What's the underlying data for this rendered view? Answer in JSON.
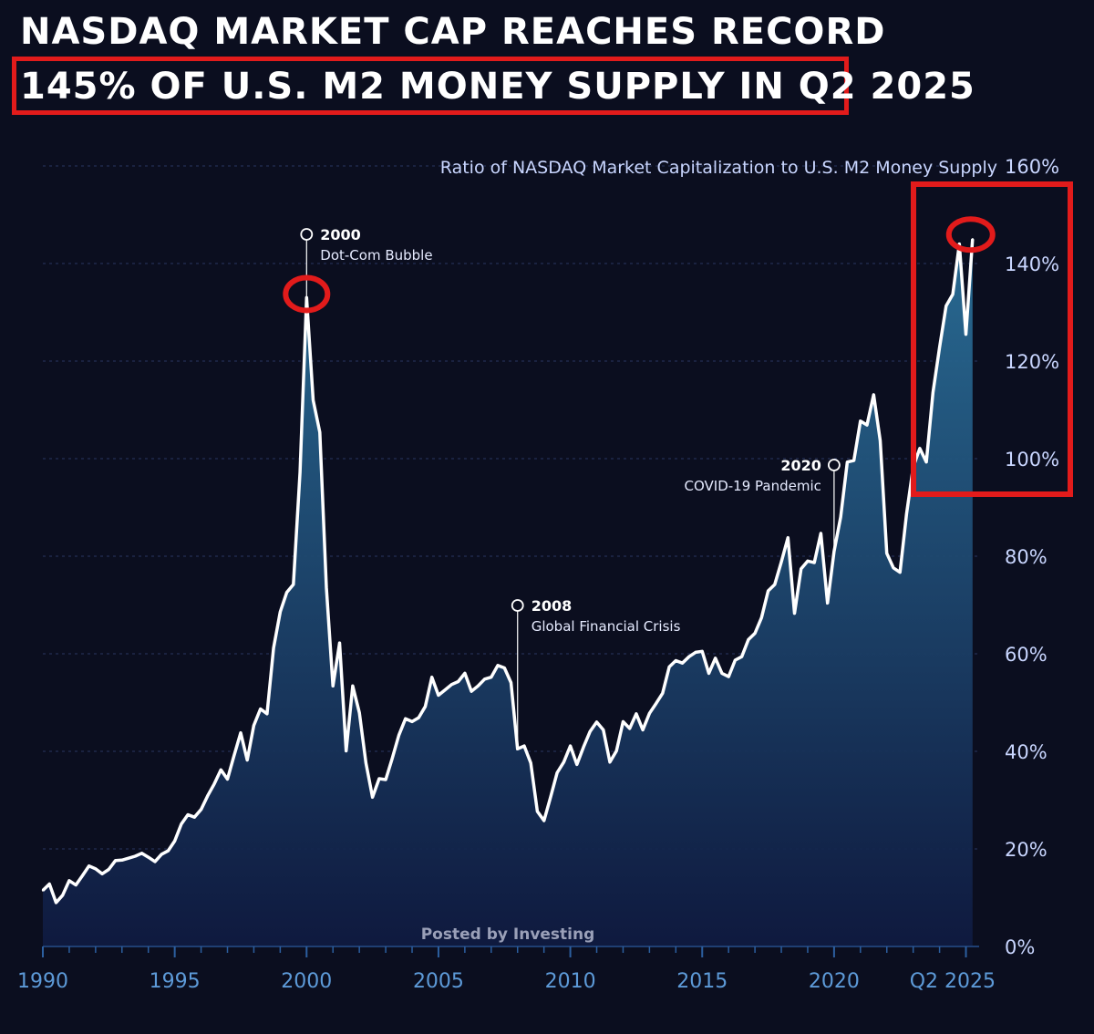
{
  "headline": {
    "line1": "NASDAQ MARKET CAP REACHES RECORD",
    "line2": "145% OF U.S. M2 MONEY SUPPLY IN Q2 2025"
  },
  "credit": "Posted by Investing",
  "colors": {
    "background": "#0b0e1f",
    "line": "#ffffff",
    "area_top": "#2a6f98",
    "area_bottom": "#0f1a40",
    "highlight": "#e21b1b",
    "x_tick": "#5d9ad8",
    "y_tick": "#c9d6ff"
  },
  "chart_data": {
    "type": "area",
    "subtitle": "Ratio of NASDAQ Market Capitalization to U.S. M2 Money Supply",
    "xlabel": "",
    "ylabel": "",
    "x_range": [
      1990,
      2025.5
    ],
    "ylim": [
      0,
      160
    ],
    "y_ticks": [
      0,
      20,
      40,
      60,
      80,
      100,
      120,
      140,
      160
    ],
    "y_tick_labels": [
      "0%",
      "20%",
      "40%",
      "60%",
      "80%",
      "100%",
      "120%",
      "140%",
      "160%"
    ],
    "x_ticks": [
      1990,
      1995,
      2000,
      2005,
      2010,
      2015,
      2020,
      2025.25
    ],
    "x_tick_labels": [
      "1990",
      "1995",
      "2000",
      "2005",
      "2010",
      "2015",
      "2020",
      "Q2 2025"
    ],
    "grid": "horizontal dashed",
    "series": [
      {
        "points": [
          [
            1990.0,
            11.5
          ],
          [
            1990.25,
            12.8
          ],
          [
            1990.5,
            9.0
          ],
          [
            1990.75,
            10.5
          ],
          [
            1991.0,
            13.5
          ],
          [
            1991.25,
            12.6
          ],
          [
            1991.5,
            14.5
          ],
          [
            1991.75,
            16.5
          ],
          [
            1992.0,
            15.9
          ],
          [
            1992.25,
            14.9
          ],
          [
            1992.5,
            15.8
          ],
          [
            1992.75,
            17.6
          ],
          [
            1993.0,
            17.7
          ],
          [
            1993.25,
            18.1
          ],
          [
            1993.5,
            18.5
          ],
          [
            1993.75,
            19.1
          ],
          [
            1994.0,
            18.3
          ],
          [
            1994.25,
            17.4
          ],
          [
            1994.5,
            18.9
          ],
          [
            1994.75,
            19.6
          ],
          [
            1995.0,
            21.6
          ],
          [
            1995.25,
            25.1
          ],
          [
            1995.5,
            27.0
          ],
          [
            1995.75,
            26.5
          ],
          [
            1996.0,
            28.1
          ],
          [
            1996.25,
            30.9
          ],
          [
            1996.5,
            33.3
          ],
          [
            1996.75,
            36.2
          ],
          [
            1997.0,
            34.3
          ],
          [
            1997.25,
            39.1
          ],
          [
            1997.5,
            43.8
          ],
          [
            1997.75,
            38.2
          ],
          [
            1998.0,
            45.3
          ],
          [
            1998.25,
            48.7
          ],
          [
            1998.5,
            47.7
          ],
          [
            1998.75,
            61.2
          ],
          [
            1999.0,
            68.6
          ],
          [
            1999.25,
            72.6
          ],
          [
            1999.5,
            74.2
          ],
          [
            1999.75,
            97.2
          ],
          [
            2000.0,
            133.0
          ],
          [
            2000.25,
            112.0
          ],
          [
            2000.5,
            105.4
          ],
          [
            2000.75,
            73.6
          ],
          [
            2001.0,
            53.4
          ],
          [
            2001.25,
            62.2
          ],
          [
            2001.5,
            40.1
          ],
          [
            2001.75,
            53.4
          ],
          [
            2002.0,
            47.9
          ],
          [
            2002.25,
            37.6
          ],
          [
            2002.5,
            30.6
          ],
          [
            2002.75,
            34.4
          ],
          [
            2003.0,
            34.2
          ],
          [
            2003.25,
            38.6
          ],
          [
            2003.5,
            43.3
          ],
          [
            2003.75,
            46.7
          ],
          [
            2004.0,
            46.1
          ],
          [
            2004.25,
            46.9
          ],
          [
            2004.5,
            49.2
          ],
          [
            2004.75,
            55.2
          ],
          [
            2005.0,
            51.5
          ],
          [
            2005.25,
            52.6
          ],
          [
            2005.5,
            53.7
          ],
          [
            2005.75,
            54.3
          ],
          [
            2006.0,
            56.0
          ],
          [
            2006.25,
            52.3
          ],
          [
            2006.5,
            53.4
          ],
          [
            2006.75,
            54.8
          ],
          [
            2007.0,
            55.2
          ],
          [
            2007.25,
            57.6
          ],
          [
            2007.5,
            57.1
          ],
          [
            2007.75,
            54.1
          ],
          [
            2008.0,
            40.5
          ],
          [
            2008.25,
            41.1
          ],
          [
            2008.5,
            37.6
          ],
          [
            2008.75,
            27.7
          ],
          [
            2009.0,
            25.8
          ],
          [
            2009.25,
            30.6
          ],
          [
            2009.5,
            35.6
          ],
          [
            2009.75,
            37.8
          ],
          [
            2010.0,
            41.1
          ],
          [
            2010.25,
            37.3
          ],
          [
            2010.5,
            40.9
          ],
          [
            2010.75,
            44.1
          ],
          [
            2011.0,
            46.0
          ],
          [
            2011.25,
            44.4
          ],
          [
            2011.5,
            37.8
          ],
          [
            2011.75,
            40.1
          ],
          [
            2012.0,
            46.1
          ],
          [
            2012.25,
            44.7
          ],
          [
            2012.5,
            47.7
          ],
          [
            2012.75,
            44.4
          ],
          [
            2013.0,
            47.8
          ],
          [
            2013.25,
            49.8
          ],
          [
            2013.5,
            51.9
          ],
          [
            2013.75,
            57.3
          ],
          [
            2014.0,
            58.6
          ],
          [
            2014.25,
            58.1
          ],
          [
            2014.5,
            59.4
          ],
          [
            2014.75,
            60.3
          ],
          [
            2015.0,
            60.5
          ],
          [
            2015.25,
            56.0
          ],
          [
            2015.5,
            59.1
          ],
          [
            2015.75,
            56.0
          ],
          [
            2016.0,
            55.3
          ],
          [
            2016.25,
            58.7
          ],
          [
            2016.5,
            59.4
          ],
          [
            2016.75,
            62.9
          ],
          [
            2017.0,
            64.2
          ],
          [
            2017.25,
            67.4
          ],
          [
            2017.5,
            72.9
          ],
          [
            2017.75,
            74.2
          ],
          [
            2018.0,
            78.8
          ],
          [
            2018.25,
            83.8
          ],
          [
            2018.5,
            68.3
          ],
          [
            2018.75,
            77.4
          ],
          [
            2019.0,
            79.0
          ],
          [
            2019.25,
            78.7
          ],
          [
            2019.5,
            84.7
          ],
          [
            2019.75,
            70.4
          ],
          [
            2020.0,
            81.0
          ],
          [
            2020.25,
            88.0
          ],
          [
            2020.5,
            99.3
          ],
          [
            2020.75,
            99.6
          ],
          [
            2021.0,
            107.7
          ],
          [
            2021.25,
            106.9
          ],
          [
            2021.5,
            113.1
          ],
          [
            2021.75,
            103.7
          ],
          [
            2022.0,
            80.6
          ],
          [
            2022.25,
            77.6
          ],
          [
            2022.5,
            76.7
          ],
          [
            2022.75,
            88.7
          ],
          [
            2023.0,
            98.3
          ],
          [
            2023.25,
            102.1
          ],
          [
            2023.5,
            99.3
          ],
          [
            2023.75,
            113.6
          ],
          [
            2024.0,
            122.8
          ],
          [
            2024.25,
            131.3
          ],
          [
            2024.5,
            133.7
          ],
          [
            2024.75,
            144.0
          ],
          [
            2025.0,
            125.5
          ],
          [
            2025.25,
            145.0
          ]
        ]
      }
    ],
    "annotations": [
      {
        "year": "2000",
        "text": "Dot-Com Bubble",
        "x": 2000.0
      },
      {
        "year": "2008",
        "text": "Global Financial Crisis",
        "x": 2008.0
      },
      {
        "year": "2020",
        "text": "COVID-19 Pandemic",
        "x": 2020.0
      }
    ],
    "highlights": [
      "2000 peak circled",
      "Q2 2025 record boxed and circled"
    ]
  }
}
